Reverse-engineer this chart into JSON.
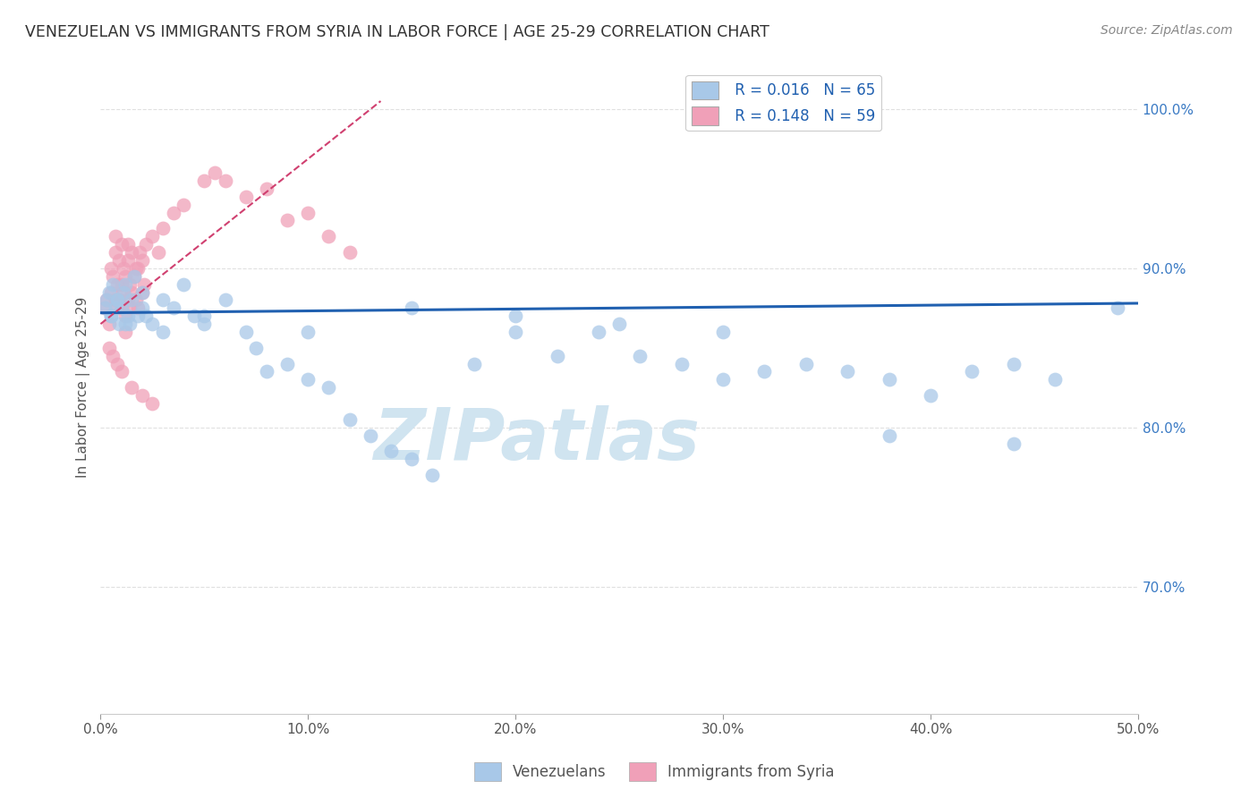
{
  "title": "VENEZUELAN VS IMMIGRANTS FROM SYRIA IN LABOR FORCE | AGE 25-29 CORRELATION CHART",
  "source": "Source: ZipAtlas.com",
  "ylabel": "In Labor Force | Age 25-29",
  "xlim": [
    0.0,
    50.0
  ],
  "ylim": [
    62.0,
    103.0
  ],
  "xticks": [
    0.0,
    10.0,
    20.0,
    30.0,
    40.0,
    50.0
  ],
  "xtick_labels": [
    "0.0%",
    "10.0%",
    "20.0%",
    "30.0%",
    "40.0%",
    "50.0%"
  ],
  "right_ytick_labels": [
    "100.0%",
    "90.0%",
    "80.0%",
    "70.0%"
  ],
  "right_ytick_values": [
    100.0,
    90.0,
    80.0,
    70.0
  ],
  "grid_ytick_values": [
    70.0,
    80.0,
    90.0,
    100.0
  ],
  "legend_r_blue": "R = 0.016",
  "legend_n_blue": "N = 65",
  "legend_r_pink": "R = 0.148",
  "legend_n_pink": "N = 59",
  "legend_label_blue": "Venezuelans",
  "legend_label_pink": "Immigrants from Syria",
  "blue_color": "#A8C8E8",
  "pink_color": "#F0A0B8",
  "trend_blue_color": "#2060B0",
  "trend_pink_color": "#D04070",
  "watermark": "ZIPatlas",
  "watermark_color": "#D0E4F0",
  "blue_points_x": [
    0.2,
    0.3,
    0.4,
    0.5,
    0.6,
    0.7,
    0.8,
    0.9,
    1.0,
    1.1,
    1.2,
    1.3,
    1.4,
    1.5,
    1.6,
    1.8,
    2.0,
    2.2,
    2.5,
    3.0,
    3.5,
    4.0,
    4.5,
    5.0,
    6.0,
    7.0,
    8.0,
    9.0,
    10.0,
    11.0,
    12.0,
    13.0,
    14.0,
    15.0,
    16.0,
    18.0,
    20.0,
    22.0,
    24.0,
    26.0,
    28.0,
    30.0,
    32.0,
    34.0,
    36.0,
    38.0,
    40.0,
    42.0,
    44.0,
    46.0,
    0.5,
    0.8,
    1.2,
    2.0,
    3.0,
    5.0,
    7.5,
    10.0,
    15.0,
    20.0,
    25.0,
    30.0,
    38.0,
    44.0,
    49.0
  ],
  "blue_points_y": [
    87.5,
    88.0,
    88.5,
    87.0,
    89.0,
    87.5,
    88.0,
    86.5,
    87.5,
    88.5,
    89.0,
    87.0,
    86.5,
    88.0,
    89.5,
    87.0,
    88.5,
    87.0,
    86.5,
    88.0,
    87.5,
    89.0,
    87.0,
    86.5,
    88.0,
    86.0,
    83.5,
    84.0,
    83.0,
    82.5,
    80.5,
    79.5,
    78.5,
    78.0,
    77.0,
    84.0,
    86.0,
    84.5,
    86.0,
    84.5,
    84.0,
    83.0,
    83.5,
    84.0,
    83.5,
    83.0,
    82.0,
    83.5,
    84.0,
    83.0,
    87.0,
    88.0,
    86.5,
    87.5,
    86.0,
    87.0,
    85.0,
    86.0,
    87.5,
    87.0,
    86.5,
    86.0,
    79.5,
    79.0,
    87.5
  ],
  "pink_points_x": [
    0.2,
    0.3,
    0.4,
    0.5,
    0.5,
    0.6,
    0.7,
    0.7,
    0.8,
    0.8,
    0.9,
    0.9,
    1.0,
    1.0,
    1.0,
    1.1,
    1.1,
    1.2,
    1.2,
    1.3,
    1.3,
    1.4,
    1.4,
    1.5,
    1.5,
    1.6,
    1.7,
    1.8,
    1.8,
    1.9,
    2.0,
    2.0,
    2.1,
    2.2,
    2.5,
    2.8,
    3.0,
    3.5,
    4.0,
    5.0,
    5.5,
    6.0,
    7.0,
    8.0,
    9.0,
    10.0,
    11.0,
    12.0,
    0.4,
    0.6,
    0.8,
    1.0,
    1.5,
    2.0,
    2.5,
    1.2,
    0.7,
    1.3,
    1.7
  ],
  "pink_points_y": [
    87.5,
    88.0,
    86.5,
    90.0,
    88.5,
    89.5,
    91.0,
    88.0,
    87.5,
    89.0,
    88.0,
    90.5,
    87.5,
    89.0,
    91.5,
    88.5,
    90.0,
    89.5,
    87.0,
    88.0,
    90.5,
    87.5,
    89.0,
    88.5,
    91.0,
    89.5,
    88.0,
    90.0,
    87.5,
    91.0,
    88.5,
    90.5,
    89.0,
    91.5,
    92.0,
    91.0,
    92.5,
    93.5,
    94.0,
    95.5,
    96.0,
    95.5,
    94.5,
    95.0,
    93.0,
    93.5,
    92.0,
    91.0,
    85.0,
    84.5,
    84.0,
    83.5,
    82.5,
    82.0,
    81.5,
    86.0,
    92.0,
    91.5,
    90.0
  ],
  "background_color": "#FFFFFF",
  "grid_color": "#E0E0E0",
  "grid_linestyle": "--"
}
